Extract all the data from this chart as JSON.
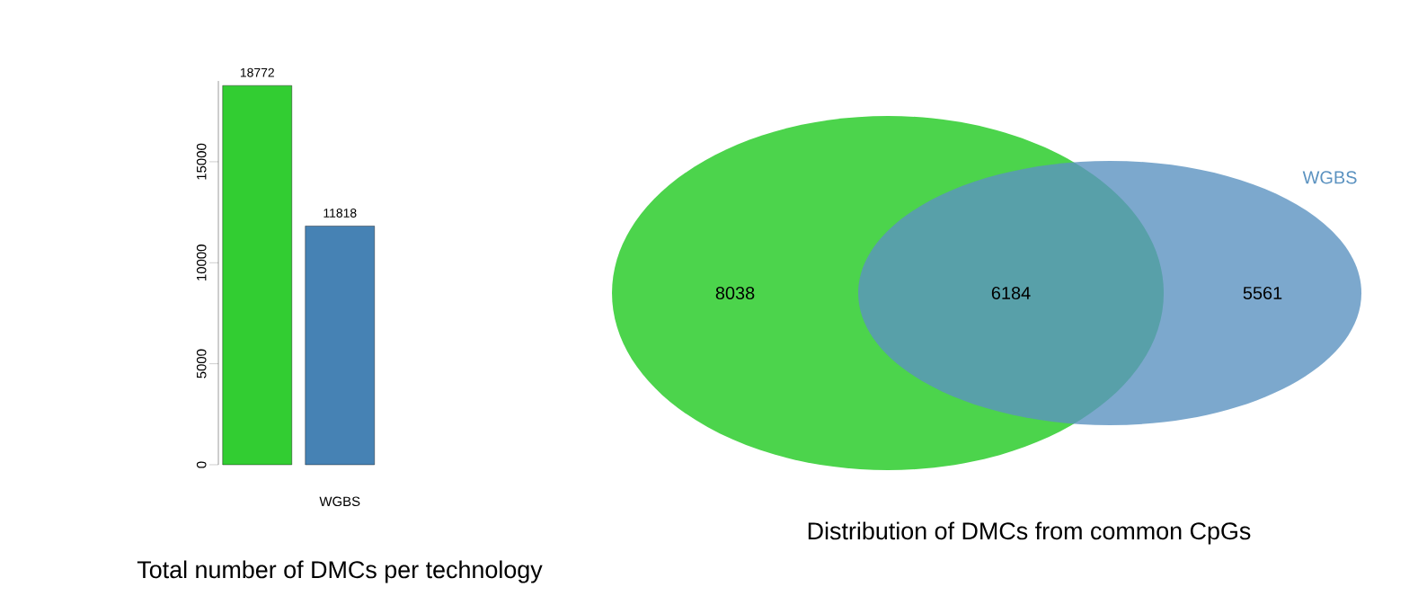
{
  "chart_data": [
    {
      "type": "bar",
      "title": "Total number of DMCs per technology",
      "categories": [
        null,
        "WGBS"
      ],
      "values": [
        18772,
        11818
      ],
      "colors": [
        "#32cd32",
        "#4682b4"
      ],
      "ylim": [
        0,
        19000
      ],
      "yticks": [
        0,
        5000,
        10000,
        15000
      ],
      "data_labels": true
    },
    {
      "type": "other",
      "title": "Distribution of DMCs from common CpGs",
      "series": [
        {
          "color": "#4cd44c"
        },
        {
          "name": "WGBS",
          "color": "#5b92c0"
        }
      ],
      "annotations": [
        "8038",
        "6184",
        "5561"
      ]
    }
  ]
}
